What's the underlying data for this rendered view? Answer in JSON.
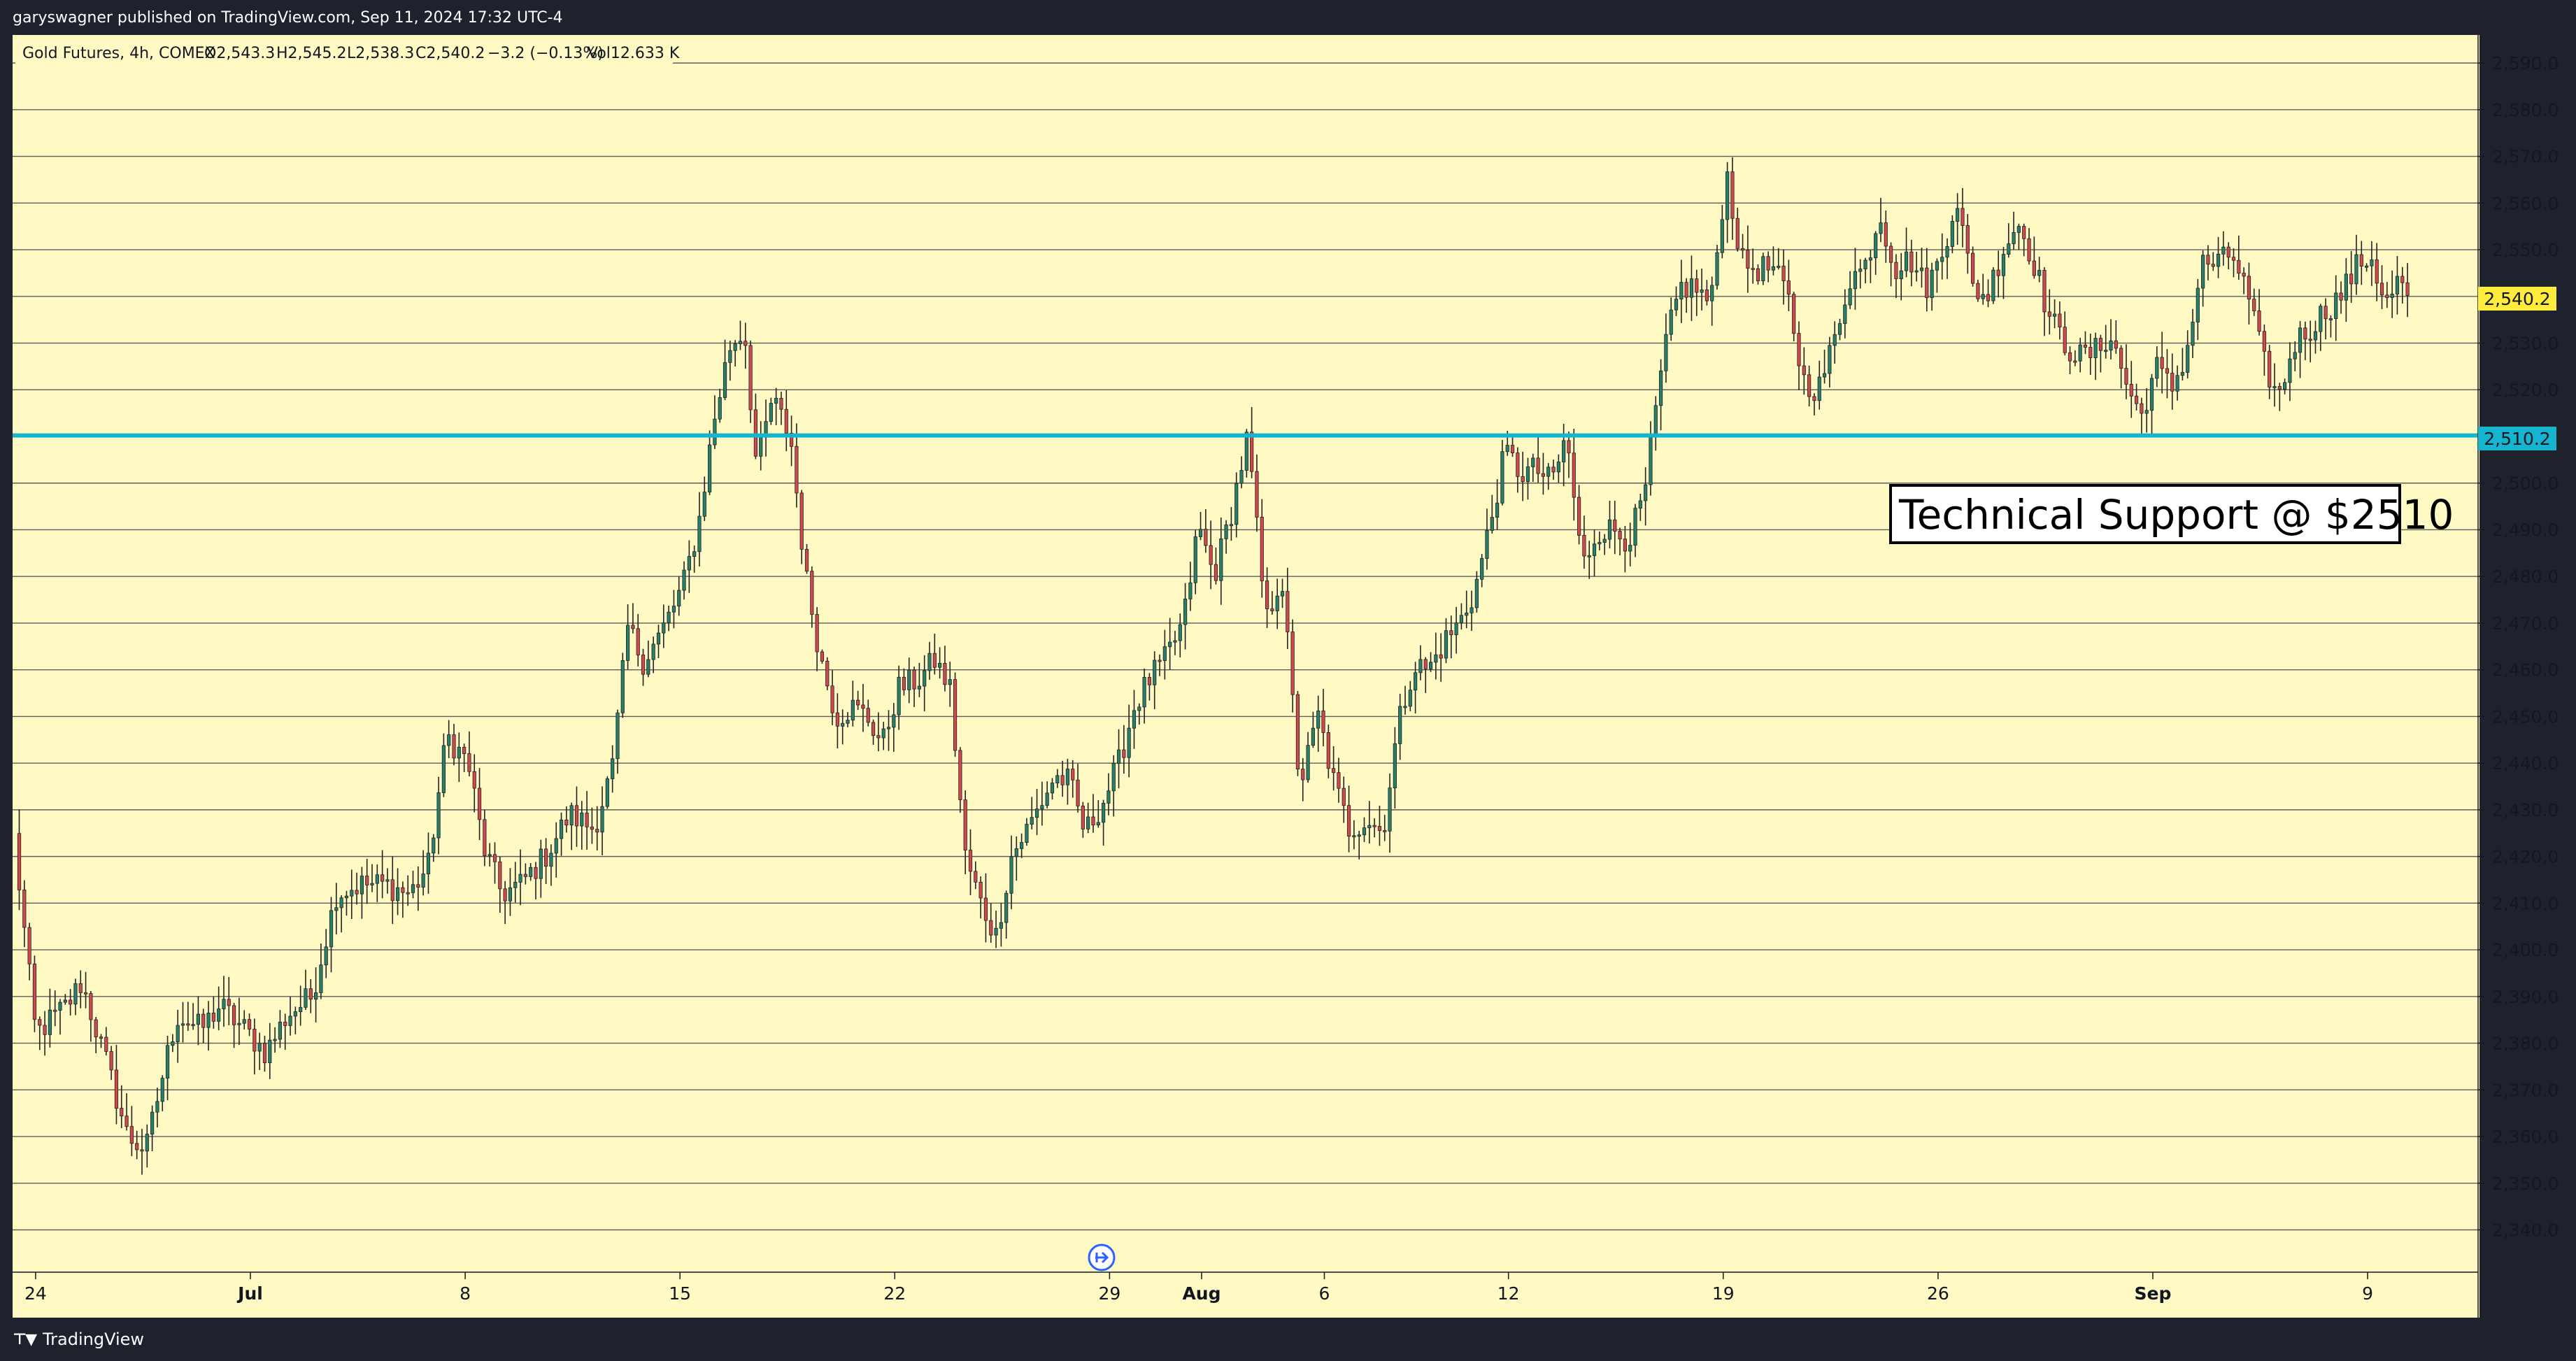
{
  "header": {
    "publish_line": "garyswagner published on TradingView.com, Sep 11, 2024 17:32 UTC-4"
  },
  "footer": {
    "brand": "TradingView"
  },
  "colors": {
    "background": "#fff9c4",
    "grid": "#5d5d5d",
    "bull": "#26806b",
    "bear": "#d1484f",
    "support_line": "#17b4cf",
    "last_price_badge": "#ffeb3b"
  },
  "chart_data": {
    "type": "candlestick",
    "symbol_legend": {
      "name": "Gold Futures, 4h, COMEX",
      "open": "O2,543.3",
      "high": "H2,545.2",
      "low": "L2,538.3",
      "close": "C2,540.2",
      "change": "−3.2 (−0.13%)",
      "volume": "Vol12.633 K"
    },
    "ylim": [
      2335,
      2595
    ],
    "y_ticks": [
      "2,340.0",
      "2,350.0",
      "2,360.0",
      "2,370.0",
      "2,380.0",
      "2,390.0",
      "2,400.0",
      "2,410.0",
      "2,420.0",
      "2,430.0",
      "2,440.0",
      "2,450.0",
      "2,460.0",
      "2,470.0",
      "2,480.0",
      "2,490.0",
      "2,500.0",
      "2,510.0",
      "2,520.0",
      "2,530.0",
      "2,540.0",
      "2,550.0",
      "2,560.0",
      "2,570.0",
      "2,580.0",
      "2,590.0"
    ],
    "x_ticks": [
      {
        "label": "24",
        "day": 0,
        "bold": false
      },
      {
        "label": "Jul",
        "day": 7,
        "bold": true
      },
      {
        "label": "8",
        "day": 14,
        "bold": false
      },
      {
        "label": "15",
        "day": 21,
        "bold": false
      },
      {
        "label": "22",
        "day": 28,
        "bold": false
      },
      {
        "label": "29",
        "day": 35,
        "bold": false
      },
      {
        "label": "Aug",
        "day": 38,
        "bold": true
      },
      {
        "label": "6",
        "day": 42,
        "bold": false
      },
      {
        "label": "12",
        "day": 48,
        "bold": false
      },
      {
        "label": "19",
        "day": 55,
        "bold": false
      },
      {
        "label": "26",
        "day": 62,
        "bold": false
      },
      {
        "label": "Sep",
        "day": 69,
        "bold": true
      },
      {
        "label": "9",
        "day": 76,
        "bold": false
      }
    ],
    "x_range_days": [
      -0.75,
      79.6
    ],
    "close_points": [
      [
        -0.7,
        2424
      ],
      [
        0,
        2382
      ],
      [
        1,
        2388
      ],
      [
        1.5,
        2393
      ],
      [
        2.3,
        2376
      ],
      [
        3,
        2360
      ],
      [
        3.6,
        2357
      ],
      [
        4.1,
        2372
      ],
      [
        4.6,
        2386
      ],
      [
        5.4,
        2383
      ],
      [
        6,
        2388
      ],
      [
        6.8,
        2383
      ],
      [
        7.5,
        2378
      ],
      [
        8.2,
        2386
      ],
      [
        9,
        2390
      ],
      [
        9.8,
        2412
      ],
      [
        10.6,
        2414
      ],
      [
        11.4,
        2414
      ],
      [
        12.2,
        2412
      ],
      [
        12.8,
        2418
      ],
      [
        13.4,
        2446
      ],
      [
        14.1,
        2440
      ],
      [
        14.6,
        2422
      ],
      [
        15.2,
        2412
      ],
      [
        15.8,
        2414
      ],
      [
        16.6,
        2420
      ],
      [
        17.4,
        2429
      ],
      [
        18.2,
        2426
      ],
      [
        18.8,
        2439
      ],
      [
        19.3,
        2469
      ],
      [
        19.8,
        2462
      ],
      [
        20.4,
        2468
      ],
      [
        21.1,
        2478
      ],
      [
        21.6,
        2491
      ],
      [
        22.1,
        2513
      ],
      [
        22.6,
        2529
      ],
      [
        23.1,
        2533
      ],
      [
        23.5,
        2503
      ],
      [
        24,
        2518
      ],
      [
        24.6,
        2510
      ],
      [
        25.1,
        2480
      ],
      [
        25.6,
        2462
      ],
      [
        26.1,
        2450
      ],
      [
        26.6,
        2452
      ],
      [
        27.1,
        2450
      ],
      [
        27.6,
        2444
      ],
      [
        28.1,
        2456
      ],
      [
        28.8,
        2458
      ],
      [
        29.3,
        2462
      ],
      [
        29.8,
        2456
      ],
      [
        30.3,
        2420
      ],
      [
        30.8,
        2410
      ],
      [
        31.3,
        2403
      ],
      [
        31.8,
        2420
      ],
      [
        32.5,
        2428
      ],
      [
        33.2,
        2437
      ],
      [
        33.7,
        2436
      ],
      [
        34.2,
        2425
      ],
      [
        34.8,
        2432
      ],
      [
        35.3,
        2440
      ],
      [
        35.8,
        2452
      ],
      [
        36.3,
        2458
      ],
      [
        36.8,
        2462
      ],
      [
        37.4,
        2470
      ],
      [
        37.9,
        2491
      ],
      [
        38.4,
        2480
      ],
      [
        38.9,
        2492
      ],
      [
        39.5,
        2510
      ],
      [
        40.1,
        2470
      ],
      [
        40.6,
        2481
      ],
      [
        41.2,
        2435
      ],
      [
        41.8,
        2450
      ],
      [
        42.3,
        2436
      ],
      [
        42.8,
        2426
      ],
      [
        43.4,
        2428
      ],
      [
        43.9,
        2425
      ],
      [
        44.4,
        2448
      ],
      [
        44.9,
        2461
      ],
      [
        45.4,
        2460
      ],
      [
        45.9,
        2466
      ],
      [
        46.4,
        2470
      ],
      [
        46.9,
        2477
      ],
      [
        47.4,
        2491
      ],
      [
        47.9,
        2507
      ],
      [
        48.4,
        2502
      ],
      [
        48.9,
        2503
      ],
      [
        49.4,
        2500
      ],
      [
        49.9,
        2510
      ],
      [
        50.4,
        2482
      ],
      [
        50.9,
        2490
      ],
      [
        51.4,
        2490
      ],
      [
        51.9,
        2488
      ],
      [
        52.4,
        2496
      ],
      [
        53.1,
        2529
      ],
      [
        53.6,
        2542
      ],
      [
        54.1,
        2542
      ],
      [
        54.6,
        2538
      ],
      [
        55.1,
        2567
      ],
      [
        55.6,
        2547
      ],
      [
        56.1,
        2546
      ],
      [
        56.6,
        2546
      ],
      [
        57.1,
        2540
      ],
      [
        57.6,
        2522
      ],
      [
        58.1,
        2520
      ],
      [
        58.6,
        2530
      ],
      [
        59.1,
        2544
      ],
      [
        59.6,
        2546
      ],
      [
        60.1,
        2558
      ],
      [
        60.6,
        2546
      ],
      [
        61.1,
        2548
      ],
      [
        61.6,
        2542
      ],
      [
        62.1,
        2548
      ],
      [
        62.6,
        2562
      ],
      [
        63.1,
        2542
      ],
      [
        63.6,
        2540
      ],
      [
        64.1,
        2550
      ],
      [
        64.6,
        2556
      ],
      [
        65.1,
        2548
      ],
      [
        65.6,
        2536
      ],
      [
        66.1,
        2530
      ],
      [
        66.6,
        2527
      ],
      [
        67.1,
        2528
      ],
      [
        67.6,
        2532
      ],
      [
        68.1,
        2522
      ],
      [
        68.6,
        2514
      ],
      [
        69.1,
        2525
      ],
      [
        69.6,
        2520
      ],
      [
        70.1,
        2528
      ],
      [
        70.6,
        2547
      ],
      [
        71.1,
        2547
      ],
      [
        71.6,
        2549
      ],
      [
        72.1,
        2540
      ],
      [
        72.6,
        2526
      ],
      [
        73.1,
        2518
      ],
      [
        73.6,
        2530
      ],
      [
        74.1,
        2533
      ],
      [
        74.6,
        2537
      ],
      [
        75.1,
        2540
      ],
      [
        75.6,
        2546
      ],
      [
        76.1,
        2549
      ],
      [
        76.6,
        2538
      ],
      [
        77.0,
        2543.3
      ],
      [
        77.3,
        2540.2
      ]
    ],
    "support_level": 2510.2,
    "support_label": "2,510.2",
    "last_price": 2540.2,
    "last_price_label": "2,540.2",
    "annotation": {
      "text": "Technical Support @ $2510"
    }
  }
}
